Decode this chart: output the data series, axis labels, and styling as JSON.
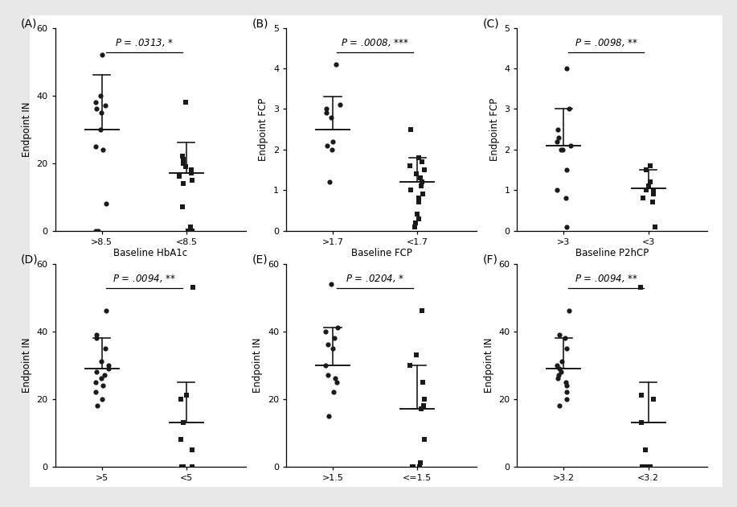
{
  "panels": [
    {
      "label": "(A)",
      "ptext": ".0313",
      "psig": "*",
      "ylabel": "Endpoint IN",
      "xlabel": "Baseline HbA1c",
      "ylim": [
        0,
        60
      ],
      "yticks": [
        0,
        20,
        40,
        60
      ],
      "g1_name": ">8.5",
      "g1_marker": "o",
      "g1_points": [
        0,
        0,
        8,
        24,
        25,
        30,
        35,
        36,
        37,
        38,
        40,
        52
      ],
      "g1_med": 30,
      "g1_lo": 30,
      "g1_hi": 46,
      "g2_name": "<8.5",
      "g2_marker": "s",
      "g2_points": [
        0,
        0,
        1,
        7,
        14,
        15,
        16,
        17,
        18,
        19,
        20,
        21,
        22,
        38
      ],
      "g2_med": 17,
      "g2_lo": 17,
      "g2_hi": 26
    },
    {
      "label": "(B)",
      "ptext": ".0008",
      "psig": "***",
      "ylabel": "Endpoint FCP",
      "xlabel": "Baseline FCP",
      "ylim": [
        0,
        5
      ],
      "yticks": [
        0,
        1,
        2,
        3,
        4,
        5
      ],
      "g1_name": ">1.7",
      "g1_marker": "o",
      "g1_points": [
        1.2,
        2.0,
        2.1,
        2.2,
        2.8,
        2.9,
        3.0,
        3.1,
        4.1
      ],
      "g1_med": 2.5,
      "g1_lo": 2.5,
      "g1_hi": 3.3,
      "g2_name": "<1.7",
      "g2_marker": "s",
      "g2_points": [
        0.1,
        0.2,
        0.3,
        0.4,
        0.7,
        0.8,
        0.9,
        1.0,
        1.1,
        1.2,
        1.3,
        1.4,
        1.5,
        1.6,
        1.7,
        1.8,
        2.5
      ],
      "g2_med": 1.2,
      "g2_lo": 1.2,
      "g2_hi": 1.8
    },
    {
      "label": "(C)",
      "ptext": ".0098",
      "psig": "**",
      "ylabel": "Endpoint FCP",
      "xlabel": "Baseline P2hCP",
      "ylim": [
        0,
        5
      ],
      "yticks": [
        0,
        1,
        2,
        3,
        4,
        5
      ],
      "g1_name": ">3",
      "g1_marker": "o",
      "g1_points": [
        0.1,
        0.8,
        1.0,
        1.5,
        2.0,
        2.0,
        2.1,
        2.2,
        2.3,
        2.5,
        3.0,
        4.0
      ],
      "g1_med": 2.1,
      "g1_lo": 2.1,
      "g1_hi": 3.0,
      "g2_name": "<3",
      "g2_marker": "s",
      "g2_points": [
        0.1,
        0.7,
        0.8,
        0.9,
        1.0,
        1.0,
        1.1,
        1.2,
        1.5,
        1.6
      ],
      "g2_med": 1.05,
      "g2_lo": 1.05,
      "g2_hi": 1.5
    },
    {
      "label": "(D)",
      "ptext": ".0094",
      "psig": "**",
      "ylabel": "Endpoint IN",
      "xlabel": "",
      "ylim": [
        0,
        60
      ],
      "yticks": [
        0,
        20,
        40,
        60
      ],
      "g1_name": ">5",
      "g1_marker": "o",
      "g1_points": [
        18,
        20,
        22,
        24,
        25,
        26,
        27,
        28,
        29,
        30,
        31,
        35,
        38,
        39,
        46
      ],
      "g1_med": 29,
      "g1_lo": 29,
      "g1_hi": 38,
      "g2_name": "<5",
      "g2_marker": "s",
      "g2_points": [
        0,
        0,
        0,
        0,
        5,
        8,
        13,
        20,
        21,
        53
      ],
      "g2_med": 13,
      "g2_lo": 13,
      "g2_hi": 25
    },
    {
      "label": "(E)",
      "ptext": ".0204",
      "psig": "*",
      "ylabel": "Endpoint IN",
      "xlabel": "",
      "ylim": [
        0,
        60
      ],
      "yticks": [
        0,
        20,
        40,
        60
      ],
      "g1_name": ">1.5",
      "g1_marker": "o",
      "g1_points": [
        15,
        22,
        25,
        26,
        27,
        30,
        35,
        36,
        38,
        40,
        41,
        54
      ],
      "g1_med": 30,
      "g1_lo": 30,
      "g1_hi": 41,
      "g2_name": "<=1.5",
      "g2_marker": "s",
      "g2_points": [
        0,
        0,
        0,
        1,
        8,
        17,
        18,
        20,
        25,
        30,
        33,
        46
      ],
      "g2_med": 17,
      "g2_lo": 17,
      "g2_hi": 30
    },
    {
      "label": "(F)",
      "ptext": ".0094",
      "psig": "**",
      "ylabel": "Endpoint IN",
      "xlabel": "",
      "ylim": [
        0,
        60
      ],
      "yticks": [
        0,
        20,
        40,
        60
      ],
      "g1_name": ">3.2",
      "g1_marker": "o",
      "g1_points": [
        18,
        20,
        22,
        24,
        25,
        26,
        27,
        28,
        29,
        30,
        31,
        35,
        38,
        39,
        46
      ],
      "g1_med": 29,
      "g1_lo": 29,
      "g1_hi": 38,
      "g2_name": "<3.2",
      "g2_marker": "s",
      "g2_points": [
        0,
        0,
        0,
        5,
        13,
        20,
        21,
        53
      ],
      "g2_med": 13,
      "g2_lo": 13,
      "g2_hi": 25
    }
  ],
  "bg_color": "#ffffff",
  "outer_bg": "#e8e8e8",
  "dot_color": "#1a1a1a",
  "line_color": "#1a1a1a",
  "fontsize_label": 8.5,
  "fontsize_tick": 8,
  "fontsize_panel": 10,
  "fontsize_pval": 8.5
}
